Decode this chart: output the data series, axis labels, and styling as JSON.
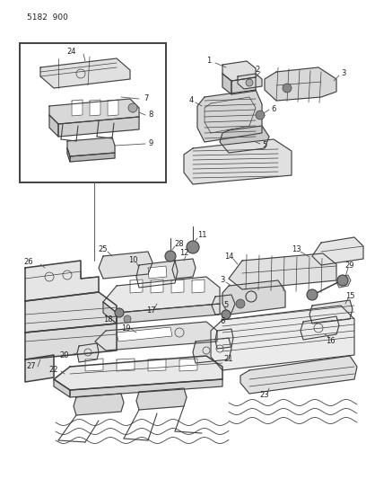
{
  "title_code": "5182 900",
  "bg_color": "#ffffff",
  "line_color": "#404040",
  "text_color": "#222222",
  "fig_width": 4.08,
  "fig_height": 5.33,
  "dpi": 100,
  "label_fontsize": 6.0,
  "header_fontsize": 6.5
}
